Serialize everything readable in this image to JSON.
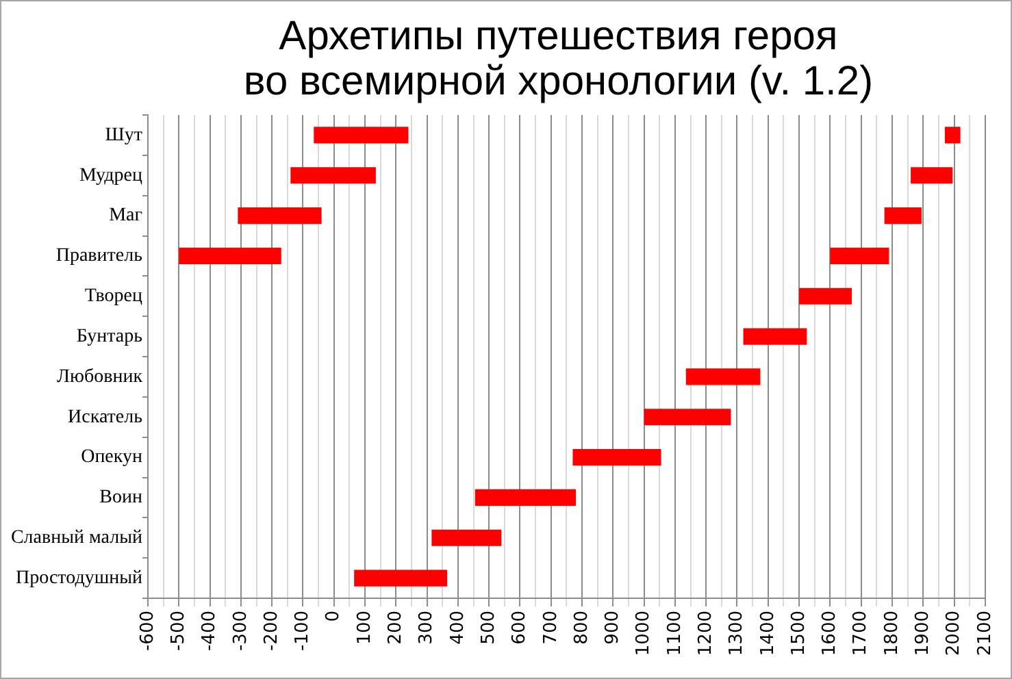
{
  "chart_data": {
    "type": "bar",
    "orientation": "horizontal",
    "title": "Архетипы путешествия героя\nво всемирной хронологии (v. 1.2)",
    "categories": [
      "Шут",
      "Мудрец",
      "Маг",
      "Правитель",
      "Творец",
      "Бунтарь",
      "Любовник",
      "Искатель",
      "Опекун",
      "Воин",
      "Славный малый",
      "Простодушный"
    ],
    "series": [
      {
        "color": "#ff0000",
        "base": [
          -65,
          -140,
          -310,
          -500,
          1500,
          1320,
          1135,
          1000,
          770,
          455,
          315,
          65
        ],
        "values": [
          305,
          275,
          270,
          330,
          170,
          205,
          240,
          280,
          285,
          325,
          225,
          300
        ]
      },
      {
        "color": "#ff0000",
        "base": [
          1970,
          1860,
          1775,
          1600,
          null,
          null,
          null,
          null,
          null,
          null,
          null,
          null
        ],
        "values": [
          50,
          135,
          120,
          190,
          null,
          null,
          null,
          null,
          null,
          null,
          null,
          null
        ]
      }
    ],
    "xlim": [
      -600,
      2100
    ],
    "xticks": [
      -600,
      {
        "value": -550,
        "label": null
      },
      -500,
      {
        "value": -450,
        "label": null
      },
      -400,
      {
        "value": -350,
        "label": null
      },
      -300,
      {
        "value": -250,
        "label": null
      },
      -200,
      {
        "value": -150,
        "label": null
      },
      -100,
      {
        "value": -50,
        "label": null
      },
      0,
      {
        "value": 50,
        "label": null
      },
      100,
      {
        "value": 150,
        "label": null
      },
      200,
      {
        "value": 250,
        "label": null
      },
      300,
      {
        "value": 350,
        "label": null
      },
      400,
      {
        "value": 450,
        "label": null
      },
      500,
      {
        "value": 550,
        "label": null
      },
      600,
      {
        "value": 650,
        "label": null
      },
      700,
      {
        "value": 750,
        "label": null
      },
      800,
      {
        "value": 850,
        "label": null
      },
      900,
      {
        "value": 950,
        "label": null
      },
      1000,
      {
        "value": 1050,
        "label": null
      },
      1100,
      {
        "value": 1150,
        "label": null
      },
      1200,
      {
        "value": 1250,
        "label": null
      },
      1300,
      {
        "value": 1350,
        "label": null
      },
      1400,
      {
        "value": 1450,
        "label": null
      },
      1500,
      {
        "value": 1550,
        "label": null
      },
      1600,
      {
        "value": 1650,
        "label": null
      },
      1700,
      {
        "value": 1750,
        "label": null
      },
      1800,
      {
        "value": 1850,
        "label": null
      },
      1900,
      {
        "value": 1950,
        "label": null
      },
      2000,
      {
        "value": 2050,
        "label": null
      },
      2100
    ],
    "grid": "x",
    "legend": false
  }
}
